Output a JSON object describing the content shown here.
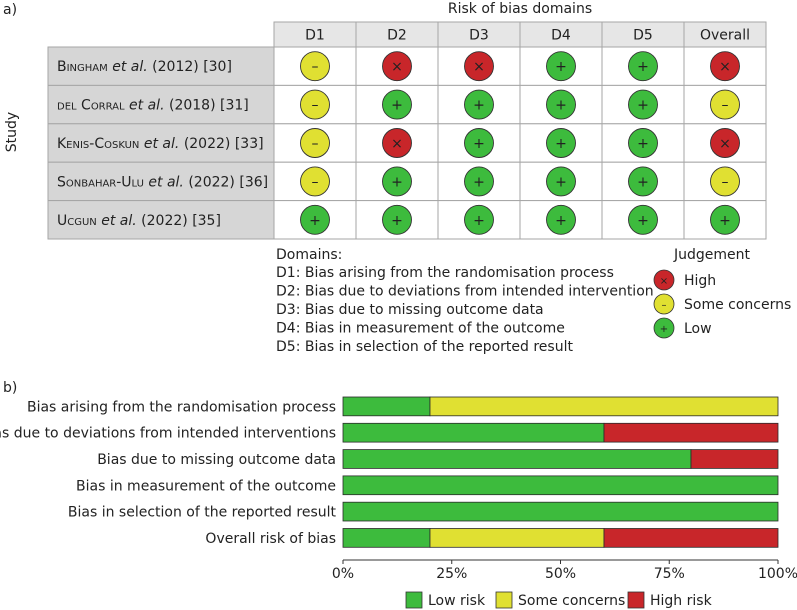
{
  "panel_a": {
    "label": "a)",
    "title": "Risk of bias domains",
    "y_axis_label": "Study",
    "columns": [
      "D1",
      "D2",
      "D3",
      "D4",
      "D5",
      "Overall"
    ],
    "studies": [
      {
        "author": "Bingham",
        "etal": "et al.",
        "year": "(2012)",
        "ref": "[30]",
        "judgements": [
          "some",
          "high",
          "high",
          "low",
          "low",
          "high"
        ]
      },
      {
        "author": "del Corral",
        "etal": "et al.",
        "year": "(2018)",
        "ref": "[31]",
        "judgements": [
          "some",
          "low",
          "low",
          "low",
          "low",
          "some"
        ]
      },
      {
        "author": "Kenis-Coskun",
        "etal": "et al.",
        "year": "(2022)",
        "ref": "[33]",
        "judgements": [
          "some",
          "high",
          "low",
          "low",
          "low",
          "high"
        ]
      },
      {
        "author": "Sonbahar-Ulu",
        "etal": "et al.",
        "year": "(2022)",
        "ref": "[36]",
        "judgements": [
          "some",
          "low",
          "low",
          "low",
          "low",
          "some"
        ]
      },
      {
        "author": "Ucgun",
        "etal": "et al.",
        "year": "(2022)",
        "ref": "[35]",
        "judgements": [
          "low",
          "low",
          "low",
          "low",
          "low",
          "low"
        ]
      }
    ],
    "domains_title": "Domains:",
    "domains": [
      "D1: Bias arising from the randomisation process",
      "D2: Bias due to deviations from intended intervention",
      "D3: Bias due to missing outcome data",
      "D4: Bias in measurement of the outcome",
      "D5: Bias in selection of the reported result"
    ],
    "judgement_title": "Judgement",
    "judgement_legend": [
      {
        "key": "high",
        "label": "High"
      },
      {
        "key": "some",
        "label": "Some concerns"
      },
      {
        "key": "low",
        "label": "Low"
      }
    ]
  },
  "symbols": {
    "high": "×",
    "some": "–",
    "low": "+"
  },
  "colors": {
    "low": "#3dbb3d",
    "some": "#e0e032",
    "high": "#c8262a",
    "header_bg": "#e6e6e6",
    "study_bg": "#d6d6d6",
    "cell_bg": "#ffffff",
    "border": "#a6a6a6"
  },
  "chart_data": {
    "type": "bar",
    "orientation": "horizontal",
    "stacked": true,
    "label": "b)",
    "categories": [
      "Bias arising from the randomisation process",
      "Bias due to deviations from intended interventions",
      "Bias due to missing outcome data",
      "Bias in measurement of the outcome",
      "Bias in selection of the reported result",
      "Overall risk of bias"
    ],
    "series": [
      {
        "name": "Low risk",
        "key": "low",
        "values": [
          20,
          60,
          80,
          100,
          100,
          20
        ]
      },
      {
        "name": "Some concerns",
        "key": "some",
        "values": [
          80,
          0,
          0,
          0,
          0,
          40
        ]
      },
      {
        "name": "High risk",
        "key": "high",
        "values": [
          0,
          40,
          20,
          0,
          0,
          40
        ]
      }
    ],
    "xlim": [
      0,
      100
    ],
    "xticks": [
      0,
      25,
      50,
      75,
      100
    ],
    "xtick_labels": [
      "0%",
      "25%",
      "50%",
      "75%",
      "100%"
    ],
    "legend_position": "bottom"
  }
}
